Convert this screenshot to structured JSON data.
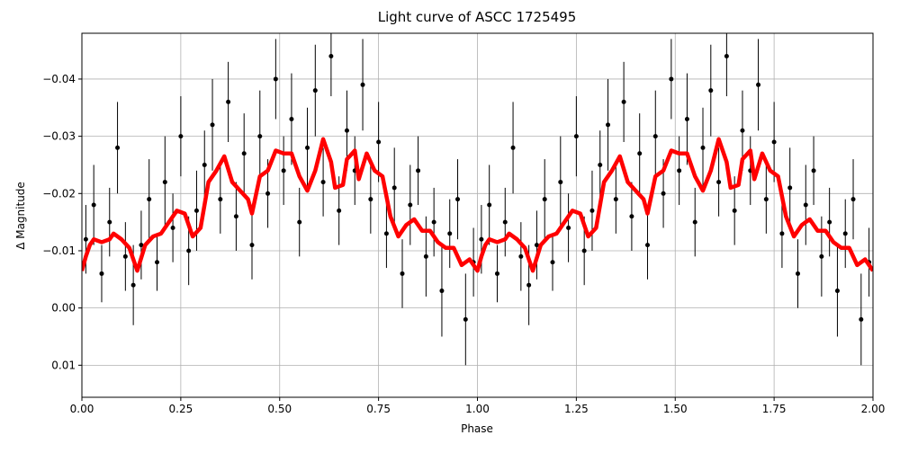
{
  "chart_data": {
    "type": "scatter",
    "title": "Light curve of ASCC 1725495",
    "xlabel": "Phase",
    "ylabel": "Δ Magnitude",
    "xlim": [
      0,
      2
    ],
    "ylim": [
      -0.048,
      0.0156
    ],
    "y_inverted": true,
    "grid": true,
    "xticks": [
      {
        "value": 0,
        "label": "0.00"
      },
      {
        "value": 0.25,
        "label": "0.25"
      },
      {
        "value": 0.5,
        "label": "0.50"
      },
      {
        "value": 0.75,
        "label": "0.75"
      },
      {
        "value": 1,
        "label": "1.00"
      },
      {
        "value": 1.25,
        "label": "1.25"
      },
      {
        "value": 1.5,
        "label": "1.50"
      },
      {
        "value": 1.75,
        "label": "1.75"
      },
      {
        "value": 2,
        "label": "2.00"
      }
    ],
    "yticks": [
      {
        "value": -0.04,
        "label": "−0.04"
      },
      {
        "value": -0.03,
        "label": "−0.03"
      },
      {
        "value": -0.02,
        "label": "−0.02"
      },
      {
        "value": -0.01,
        "label": "−0.01"
      },
      {
        "value": 0,
        "label": "0.00"
      },
      {
        "value": 0.01,
        "label": "0.01"
      }
    ],
    "series": [
      {
        "type": "errorbar",
        "color": "#000000",
        "x": [
          0.01,
          0.03,
          0.05,
          0.07,
          0.09,
          0.11,
          0.13,
          0.15,
          0.17,
          0.19,
          0.21,
          0.23,
          0.25,
          0.27,
          0.29,
          0.31,
          0.33,
          0.35,
          0.37,
          0.39,
          0.41,
          0.43,
          0.45,
          0.47,
          0.49,
          0.51,
          0.53,
          0.55,
          0.57,
          0.59,
          0.61,
          0.63,
          0.65,
          0.67,
          0.69,
          0.71,
          0.73,
          0.75,
          0.77,
          0.79,
          0.81,
          0.83,
          0.85,
          0.87,
          0.89,
          0.91,
          0.93,
          0.95,
          0.97,
          0.99,
          1.01,
          1.03,
          1.05,
          1.07,
          1.09,
          1.11,
          1.13,
          1.15,
          1.17,
          1.19,
          1.21,
          1.23,
          1.25,
          1.27,
          1.29,
          1.31,
          1.33,
          1.35,
          1.37,
          1.39,
          1.41,
          1.43,
          1.45,
          1.47,
          1.49,
          1.51,
          1.53,
          1.55,
          1.57,
          1.59,
          1.61,
          1.63,
          1.65,
          1.67,
          1.69,
          1.71,
          1.73,
          1.75,
          1.77,
          1.79,
          1.81,
          1.83,
          1.85,
          1.87,
          1.89,
          1.91,
          1.93,
          1.95,
          1.97,
          1.99
        ],
        "values": [
          -0.012,
          -0.018,
          -0.006,
          -0.015,
          -0.028,
          -0.009,
          -0.004,
          -0.011,
          -0.019,
          -0.008,
          -0.022,
          -0.014,
          -0.03,
          -0.01,
          -0.017,
          -0.025,
          -0.032,
          -0.019,
          -0.036,
          -0.016,
          -0.027,
          -0.011,
          -0.03,
          -0.02,
          -0.04,
          -0.024,
          -0.033,
          -0.015,
          -0.028,
          -0.038,
          -0.022,
          -0.044,
          -0.017,
          -0.031,
          -0.024,
          -0.039,
          -0.019,
          -0.029,
          -0.013,
          -0.021,
          -0.006,
          -0.018,
          -0.024,
          -0.009,
          -0.015,
          -0.003,
          -0.013,
          -0.019,
          0.002,
          -0.008,
          -0.012,
          -0.018,
          -0.006,
          -0.015,
          -0.028,
          -0.009,
          -0.004,
          -0.011,
          -0.019,
          -0.008,
          -0.022,
          -0.014,
          -0.03,
          -0.01,
          -0.017,
          -0.025,
          -0.032,
          -0.019,
          -0.036,
          -0.016,
          -0.027,
          -0.011,
          -0.03,
          -0.02,
          -0.04,
          -0.024,
          -0.033,
          -0.015,
          -0.028,
          -0.038,
          -0.022,
          -0.044,
          -0.017,
          -0.031,
          -0.024,
          -0.039,
          -0.019,
          -0.029,
          -0.013,
          -0.021,
          -0.006,
          -0.018,
          -0.024,
          -0.009,
          -0.015,
          -0.003,
          -0.013,
          -0.019,
          0.002,
          -0.008
        ],
        "errors": [
          0.006,
          0.007,
          0.005,
          0.006,
          0.008,
          0.006,
          0.007,
          0.006,
          0.007,
          0.005,
          0.008,
          0.006,
          0.007,
          0.006,
          0.007,
          0.006,
          0.008,
          0.006,
          0.007,
          0.006,
          0.007,
          0.006,
          0.008,
          0.006,
          0.007,
          0.006,
          0.008,
          0.006,
          0.007,
          0.008,
          0.006,
          0.007,
          0.006,
          0.007,
          0.006,
          0.008,
          0.006,
          0.007,
          0.006,
          0.007,
          0.006,
          0.007,
          0.006,
          0.007,
          0.006,
          0.008,
          0.006,
          0.007,
          0.008,
          0.006,
          0.006,
          0.007,
          0.005,
          0.006,
          0.008,
          0.006,
          0.007,
          0.006,
          0.007,
          0.005,
          0.008,
          0.006,
          0.007,
          0.006,
          0.007,
          0.006,
          0.008,
          0.006,
          0.007,
          0.006,
          0.007,
          0.006,
          0.008,
          0.006,
          0.007,
          0.006,
          0.008,
          0.006,
          0.007,
          0.008,
          0.006,
          0.007,
          0.006,
          0.007,
          0.006,
          0.008,
          0.006,
          0.007,
          0.006,
          0.007,
          0.006,
          0.007,
          0.006,
          0.007,
          0.006,
          0.008,
          0.006,
          0.007,
          0.008,
          0.006
        ]
      },
      {
        "type": "line",
        "color": "#ff0000",
        "x": [
          0,
          0.01,
          0.02,
          0.03,
          0.05,
          0.07,
          0.08,
          0.1,
          0.12,
          0.14,
          0.16,
          0.18,
          0.2,
          0.22,
          0.24,
          0.26,
          0.28,
          0.3,
          0.32,
          0.34,
          0.36,
          0.38,
          0.4,
          0.42,
          0.43,
          0.45,
          0.47,
          0.49,
          0.51,
          0.53,
          0.55,
          0.57,
          0.59,
          0.61,
          0.63,
          0.64,
          0.66,
          0.67,
          0.69,
          0.7,
          0.72,
          0.74,
          0.76,
          0.78,
          0.8,
          0.82,
          0.84,
          0.86,
          0.88,
          0.9,
          0.92,
          0.94,
          0.96,
          0.98,
          1,
          1.01,
          1.02,
          1.03,
          1.05,
          1.07,
          1.08,
          1.1,
          1.12,
          1.14,
          1.16,
          1.18,
          1.2,
          1.22,
          1.24,
          1.26,
          1.28,
          1.3,
          1.32,
          1.34,
          1.36,
          1.38,
          1.4,
          1.42,
          1.43,
          1.45,
          1.47,
          1.49,
          1.51,
          1.53,
          1.55,
          1.57,
          1.59,
          1.61,
          1.63,
          1.64,
          1.66,
          1.67,
          1.69,
          1.7,
          1.72,
          1.74,
          1.76,
          1.78,
          1.8,
          1.82,
          1.84,
          1.86,
          1.88,
          1.9,
          1.92,
          1.94,
          1.96,
          1.98,
          2
        ],
        "values": [
          -0.0065,
          -0.009,
          -0.011,
          -0.012,
          -0.0115,
          -0.012,
          -0.013,
          -0.012,
          -0.0105,
          -0.0065,
          -0.011,
          -0.0125,
          -0.013,
          -0.015,
          -0.017,
          -0.0165,
          -0.0125,
          -0.014,
          -0.022,
          -0.024,
          -0.0265,
          -0.022,
          -0.0205,
          -0.019,
          -0.0165,
          -0.023,
          -0.024,
          -0.0275,
          -0.027,
          -0.027,
          -0.023,
          -0.0205,
          -0.024,
          -0.0295,
          -0.0255,
          -0.021,
          -0.0215,
          -0.026,
          -0.0275,
          -0.0225,
          -0.027,
          -0.024,
          -0.023,
          -0.016,
          -0.0125,
          -0.0145,
          -0.0155,
          -0.0135,
          -0.0135,
          -0.0115,
          -0.0105,
          -0.0105,
          -0.0075,
          -0.0085,
          -0.0065,
          -0.009,
          -0.011,
          -0.012,
          -0.0115,
          -0.012,
          -0.013,
          -0.012,
          -0.0105,
          -0.0065,
          -0.011,
          -0.0125,
          -0.013,
          -0.015,
          -0.017,
          -0.0165,
          -0.0125,
          -0.014,
          -0.022,
          -0.024,
          -0.0265,
          -0.022,
          -0.0205,
          -0.019,
          -0.0165,
          -0.023,
          -0.024,
          -0.0275,
          -0.027,
          -0.027,
          -0.023,
          -0.0205,
          -0.024,
          -0.0295,
          -0.0255,
          -0.021,
          -0.0215,
          -0.026,
          -0.0275,
          -0.0225,
          -0.027,
          -0.024,
          -0.023,
          -0.016,
          -0.0125,
          -0.0145,
          -0.0155,
          -0.0135,
          -0.0135,
          -0.0115,
          -0.0105,
          -0.0105,
          -0.0075,
          -0.0085,
          -0.0065
        ]
      }
    ]
  }
}
